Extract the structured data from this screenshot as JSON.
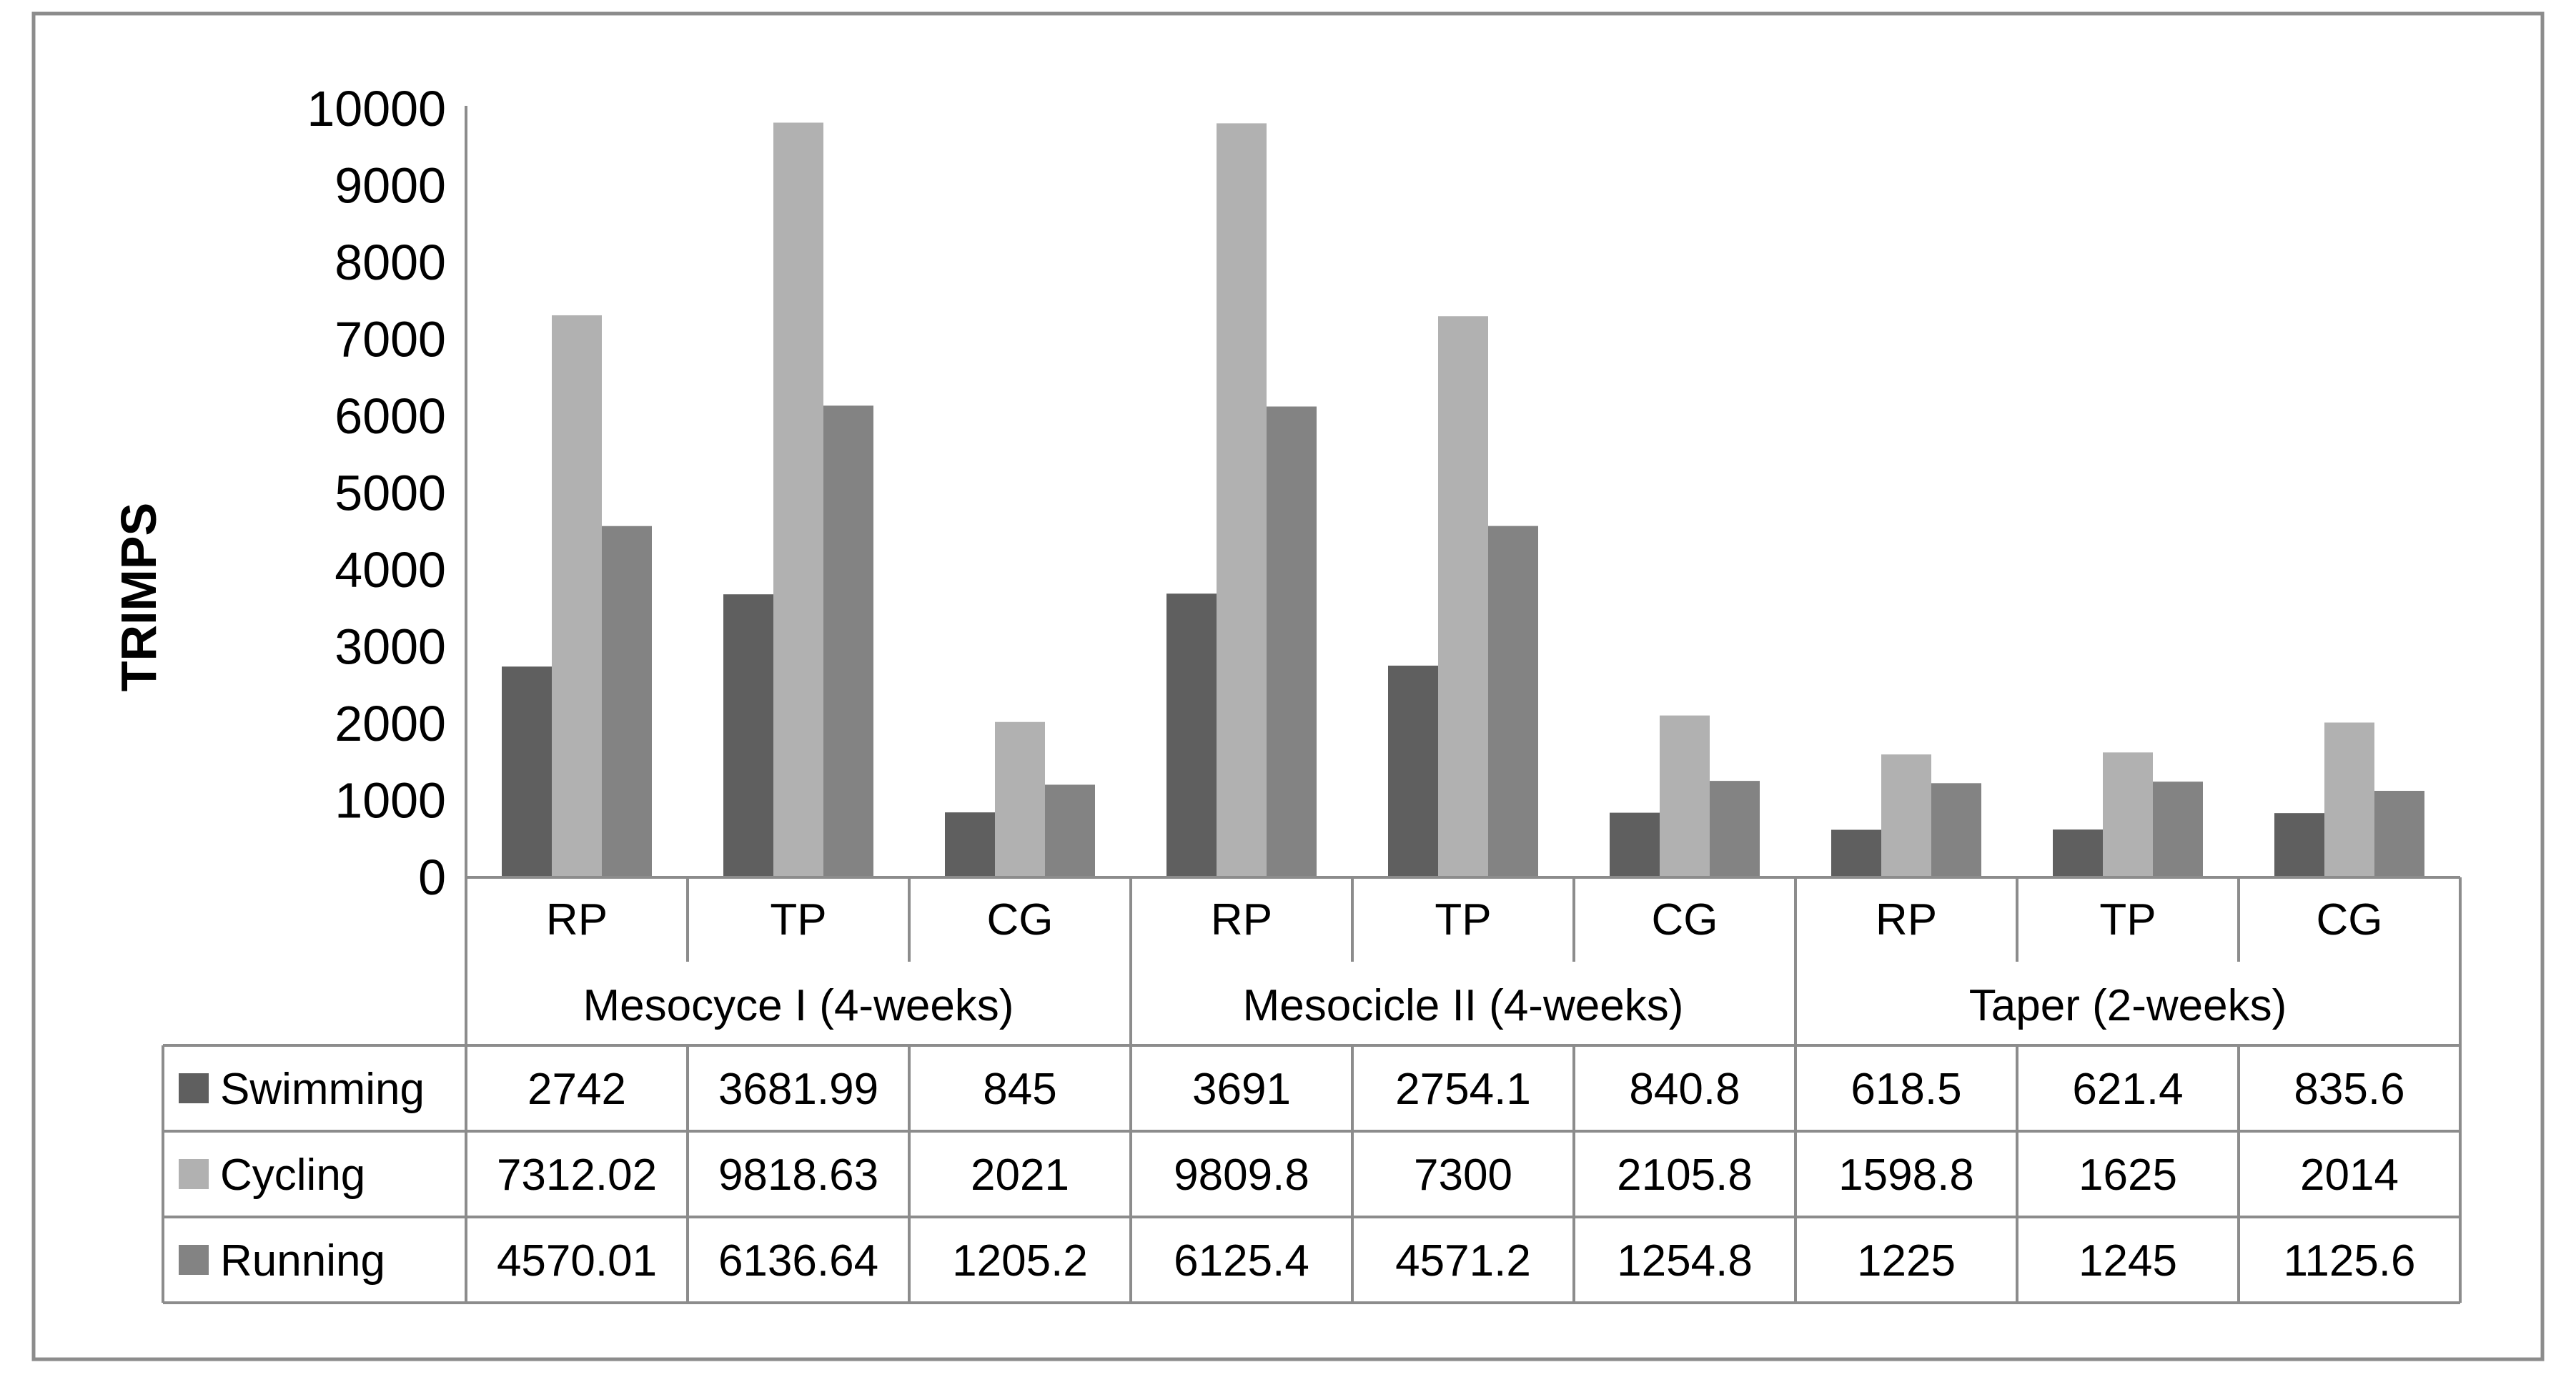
{
  "chart_data": {
    "type": "bar",
    "title": "",
    "xlabel": "",
    "ylabel": "TRIMPS",
    "ylim": [
      0,
      10000
    ],
    "yticks": [
      0,
      1000,
      2000,
      3000,
      4000,
      5000,
      6000,
      7000,
      8000,
      9000,
      10000
    ],
    "grid": false,
    "legend": "in data table",
    "groups": [
      {
        "label": "Mesocyce I (4-weeks)",
        "categories": [
          "RP",
          "TP",
          "CG"
        ]
      },
      {
        "label": "Mesocicle II (4-weeks)",
        "categories": [
          "RP",
          "TP",
          "CG"
        ]
      },
      {
        "label": "Taper (2-weeks)",
        "categories": [
          "RP",
          "TP",
          "CG"
        ]
      }
    ],
    "categories": [
      "RP",
      "TP",
      "CG",
      "RP",
      "TP",
      "CG",
      "RP",
      "TP",
      "CG"
    ],
    "series": [
      {
        "name": "Swimming",
        "color": "#5f5f5f",
        "values": [
          2742,
          3681.99,
          845,
          3691,
          2754.1,
          840.8,
          618.5,
          621.4,
          835.6
        ],
        "labels": [
          "2742",
          "3681.99",
          "845",
          "3691",
          "2754.1",
          "840.8",
          "618.5",
          "621.4",
          "835.6"
        ]
      },
      {
        "name": "Cycling",
        "color": "#b1b1b1",
        "values": [
          7312.02,
          9818.63,
          2021,
          9809.8,
          7300,
          2105.8,
          1598.8,
          1625,
          2014
        ],
        "labels": [
          "7312.02",
          "9818.63",
          "2021",
          "9809.8",
          "7300",
          "2105.8",
          "1598.8",
          "1625",
          "2014"
        ]
      },
      {
        "name": "Running",
        "color": "#838383",
        "values": [
          4570.01,
          6136.64,
          1205.2,
          6125.4,
          4571.2,
          1254.8,
          1225,
          1245,
          1125.6
        ],
        "labels": [
          "4570.01",
          "6136.64",
          "1205.2",
          "6125.4",
          "4571.2",
          "1254.8",
          "1225",
          "1245",
          "1125.6"
        ]
      }
    ]
  }
}
